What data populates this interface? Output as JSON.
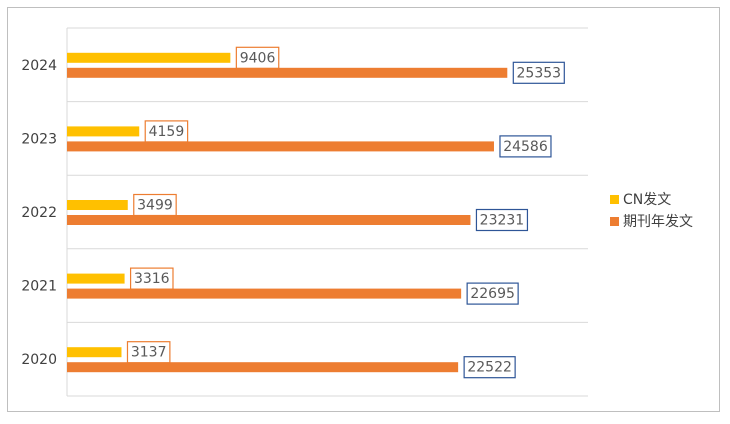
{
  "chart_data": {
    "type": "bar",
    "orientation": "horizontal",
    "categories": [
      "2024",
      "2023",
      "2022",
      "2021",
      "2020"
    ],
    "series": [
      {
        "name": "CN发文",
        "values": [
          9406,
          4159,
          3499,
          3316,
          3137
        ],
        "color": "#FFC000",
        "label_box_color": "#ED7D31"
      },
      {
        "name": "期刊年发文",
        "values": [
          25353,
          24586,
          23231,
          22695,
          22522
        ],
        "color": "#ED7D31",
        "label_box_color": "#2E5597"
      }
    ],
    "title": "",
    "xlabel": "",
    "ylabel": "",
    "xlim": [
      0,
      30000
    ],
    "grid": true,
    "legend_position": "right"
  }
}
